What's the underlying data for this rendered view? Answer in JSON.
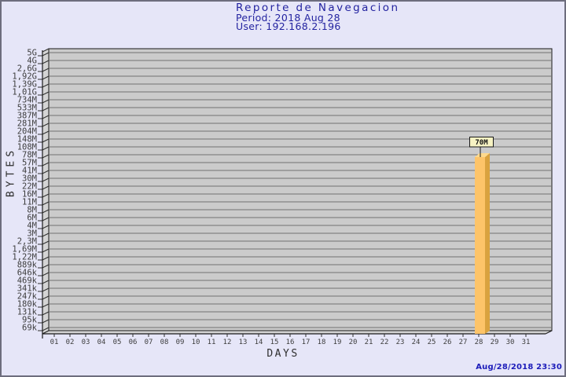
{
  "window": {
    "background_color": "#e6e6f8",
    "border_color": "#6e6e7e"
  },
  "chart_data": {
    "type": "bar",
    "title": "Reporte de Navegacion",
    "subtitle": "Period: 2018 Aug 28",
    "user_line": "User: 192.168.2.196",
    "xlabel": "DAYS",
    "ylabel": "BYTES",
    "timestamp": "Aug/28/2018 23:30",
    "grid": true,
    "legend": false,
    "y_scale": "logarithmic",
    "y_tick_labels": [
      "5G",
      "4G",
      "2,6G",
      "1,92G",
      "1,39G",
      "1,01G",
      "734M",
      "533M",
      "387M",
      "281M",
      "204M",
      "148M",
      "108M",
      "78M",
      "57M",
      "41M",
      "30M",
      "22M",
      "16M",
      "11M",
      "8M",
      "6M",
      "4M",
      "3M",
      "2,3M",
      "1,69M",
      "1,22M",
      "889k",
      "646k",
      "469k",
      "341k",
      "247k",
      "180k",
      "131k",
      "95k",
      "69k"
    ],
    "categories": [
      "01",
      "02",
      "03",
      "04",
      "05",
      "06",
      "07",
      "08",
      "09",
      "10",
      "11",
      "12",
      "13",
      "14",
      "15",
      "16",
      "17",
      "18",
      "19",
      "20",
      "21",
      "22",
      "23",
      "24",
      "25",
      "26",
      "27",
      "28",
      "29",
      "30",
      "31"
    ],
    "values": [
      0,
      0,
      0,
      0,
      0,
      0,
      0,
      0,
      0,
      0,
      0,
      0,
      0,
      0,
      0,
      0,
      0,
      0,
      0,
      0,
      0,
      0,
      0,
      0,
      0,
      0,
      0,
      70000000,
      0,
      0,
      0
    ],
    "bars": [
      {
        "category": "28",
        "value": 70000000,
        "label": "70M"
      }
    ],
    "colors": {
      "plot_bg": "#cbcbcb",
      "band_bg": "#d4d4d4",
      "grid_line": "#707070",
      "axis_line": "#1a1a1a",
      "tick_text": "#3d3d3d",
      "bar_front": "#fdc469",
      "bar_side": "#d9a23f",
      "bar_top": "#fed98d",
      "flag_bg": "#f7f3c3",
      "flag_border": "#1a1a1a",
      "flag_text": "#111111",
      "title_text": "#2323a0",
      "timestamp_text": "#1c1cba"
    }
  }
}
